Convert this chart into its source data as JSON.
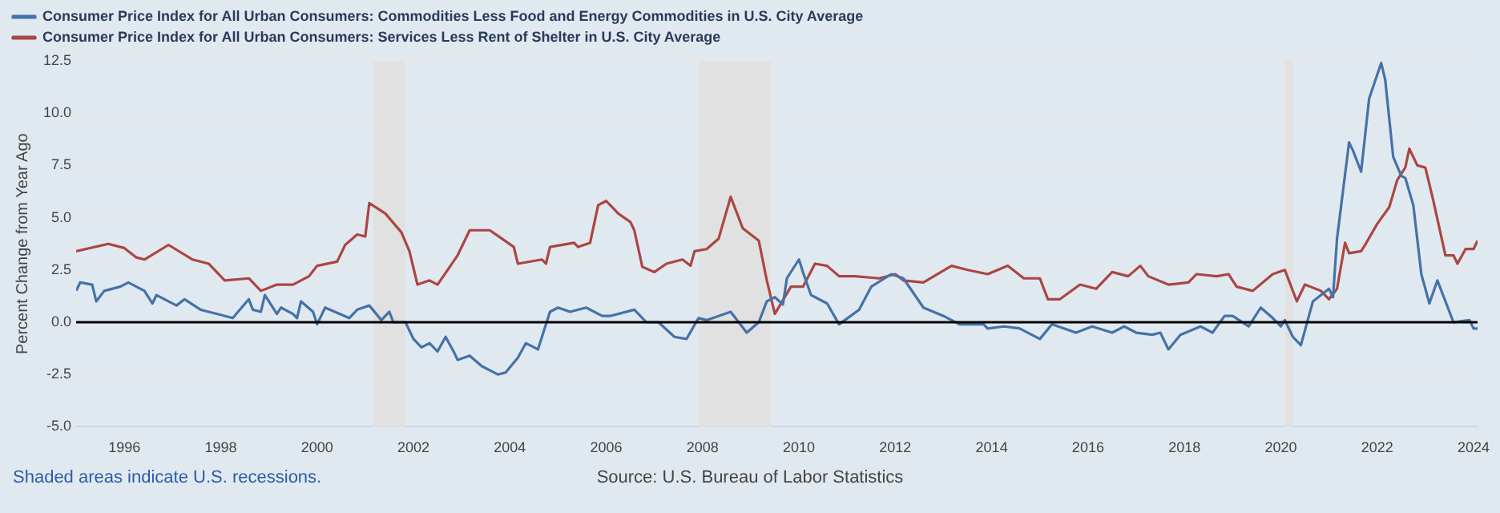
{
  "chart_data": {
    "type": "line",
    "ylabel": "Percent Change from Year Ago",
    "annotations": [
      "Shaded areas indicate U.S. recessions.",
      "Source: U.S. Bureau of Labor Statistics"
    ],
    "xlim": [
      "1995-01",
      "2024-02"
    ],
    "xticks": [
      "1996",
      "1998",
      "2000",
      "2002",
      "2004",
      "2006",
      "2008",
      "2010",
      "2012",
      "2014",
      "2016",
      "2018",
      "2020",
      "2022",
      "2024"
    ],
    "ylim": [
      -5,
      12.5
    ],
    "yticks": [
      {
        "value": -5,
        "label": "-5.0"
      },
      {
        "value": -2.5,
        "label": "-2.5"
      },
      {
        "value": 0,
        "label": "0.0"
      },
      2.5,
      {
        "value": 5,
        "label": "5.0"
      },
      7.5,
      {
        "value": 10,
        "label": "10.0"
      },
      12.5
    ],
    "grid": "y",
    "legend": "top left",
    "marker": "none",
    "line_style": "solid",
    "ref_lines": [
      {
        "axis": "y",
        "value": 0,
        "color": "#000000"
      }
    ],
    "bands": [
      {
        "axis": "x",
        "from": "2001-03",
        "to": "2001-11",
        "color": "#e1e1e1"
      },
      {
        "axis": "x",
        "from": "2007-12",
        "to": "2009-06",
        "color": "#e1e1e1"
      },
      {
        "axis": "x",
        "from": "2020-02",
        "to": "2020-04",
        "color": "#e1e1e1"
      }
    ],
    "series": [
      {
        "name": "Consumer Price Index for All Urban Consumers: Commodities Less Food and Energy Commodities in U.S. City Average",
        "color": "#4572a7",
        "x": [
          "1995-01",
          "1995-02",
          "1995-05",
          "1995-06",
          "1995-08",
          "1995-12",
          "1996-02",
          "1996-06",
          "1996-08",
          "1996-09",
          "1997-02",
          "1997-04",
          "1997-08",
          "1997-12",
          "1998-04",
          "1998-08",
          "1998-09",
          "1998-11",
          "1998-12",
          "1999-03",
          "1999-04",
          "1999-07",
          "1999-08",
          "1999-09",
          "1999-12",
          "2000-01",
          "2000-03",
          "2000-09",
          "2000-11",
          "2001-02",
          "2001-05",
          "2001-07",
          "2001-08",
          "2001-11",
          "2002-01",
          "2002-03",
          "2002-05",
          "2002-07",
          "2002-09",
          "2002-11",
          "2002-12",
          "2003-03",
          "2003-06",
          "2003-10",
          "2003-12",
          "2004-03",
          "2004-05",
          "2004-08",
          "2004-11",
          "2005-01",
          "2005-04",
          "2005-08",
          "2005-12",
          "2006-02",
          "2006-08",
          "2006-11",
          "2007-02",
          "2007-06",
          "2007-09",
          "2007-12",
          "2008-02",
          "2008-08",
          "2008-12",
          "2009-03",
          "2009-05",
          "2009-07",
          "2009-09",
          "2009-10",
          "2010-01",
          "2010-02",
          "2010-04",
          "2010-08",
          "2010-11",
          "2011-04",
          "2011-07",
          "2011-12",
          "2012-03",
          "2012-08",
          "2013-01",
          "2013-05",
          "2013-11",
          "2013-12",
          "2014-04",
          "2014-08",
          "2015-01",
          "2015-04",
          "2015-10",
          "2016-02",
          "2016-07",
          "2016-10",
          "2017-01",
          "2017-05",
          "2017-07",
          "2017-09",
          "2017-12",
          "2018-05",
          "2018-08",
          "2018-11",
          "2019-01",
          "2019-05",
          "2019-08",
          "2019-11",
          "2020-01",
          "2020-02",
          "2020-04",
          "2020-06",
          "2020-07",
          "2020-09",
          "2021-01",
          "2021-02",
          "2021-03",
          "2021-06",
          "2021-07",
          "2021-09",
          "2021-11",
          "2022-02",
          "2022-03",
          "2022-05",
          "2022-07",
          "2022-08",
          "2022-10",
          "2022-12",
          "2023-02",
          "2023-04",
          "2023-08",
          "2023-12",
          "2024-01",
          "2024-02"
        ],
        "values": [
          1.5,
          1.9,
          1.8,
          1.0,
          1.5,
          1.7,
          1.9,
          1.5,
          0.9,
          1.3,
          0.8,
          1.1,
          0.6,
          0.4,
          0.2,
          1.1,
          0.6,
          0.5,
          1.3,
          0.4,
          0.7,
          0.4,
          0.2,
          1.0,
          0.5,
          -0.1,
          0.7,
          0.2,
          0.6,
          0.8,
          0.1,
          0.5,
          0.0,
          0.0,
          -0.8,
          -1.2,
          -1.0,
          -1.4,
          -0.7,
          -1.4,
          -1.8,
          -1.6,
          -2.1,
          -2.5,
          -2.4,
          -1.7,
          -1.0,
          -1.3,
          0.5,
          0.7,
          0.5,
          0.7,
          0.3,
          0.3,
          0.6,
          0.0,
          0.0,
          -0.7,
          -0.8,
          0.2,
          0.1,
          0.5,
          -0.5,
          0.0,
          1.0,
          1.2,
          0.85,
          2.1,
          3.0,
          2.4,
          1.3,
          0.9,
          -0.1,
          0.6,
          1.7,
          2.3,
          2.1,
          0.7,
          0.3,
          -0.1,
          -0.1,
          -0.3,
          -0.2,
          -0.3,
          -0.8,
          -0.1,
          -0.5,
          -0.2,
          -0.5,
          -0.2,
          -0.5,
          -0.6,
          -0.5,
          -1.3,
          -0.6,
          -0.2,
          -0.5,
          0.3,
          0.3,
          -0.2,
          0.7,
          0.2,
          -0.2,
          0.1,
          -0.7,
          -1.1,
          -0.4,
          1.0,
          1.6,
          1.2,
          4.0,
          8.6,
          8.2,
          7.2,
          10.7,
          12.4,
          11.6,
          7.9,
          7.0,
          6.9,
          5.6,
          2.3,
          0.9,
          2.0,
          0.0,
          0.1,
          -0.3,
          -0.3
        ]
      },
      {
        "name": "Consumer Price Index for All Urban Consumers: Services Less Rent of Shelter in U.S. City Average",
        "color": "#aa4643",
        "x": [
          "1995-01",
          "1995-09",
          "1996-01",
          "1996-04",
          "1996-06",
          "1996-12",
          "1997-06",
          "1997-10",
          "1998-02",
          "1998-08",
          "1998-11",
          "1999-03",
          "1999-07",
          "1999-11",
          "2000-01",
          "2000-06",
          "2000-08",
          "2000-11",
          "2001-01",
          "2001-02",
          "2001-06",
          "2001-10",
          "2001-12",
          "2002-02",
          "2002-05",
          "2002-07",
          "2002-12",
          "2003-03",
          "2003-08",
          "2003-11",
          "2004-02",
          "2004-03",
          "2004-09",
          "2004-10",
          "2004-11",
          "2005-05",
          "2005-06",
          "2005-09",
          "2005-11",
          "2006-01",
          "2006-04",
          "2006-07",
          "2006-08",
          "2006-10",
          "2007-01",
          "2007-04",
          "2007-08",
          "2007-10",
          "2007-11",
          "2008-02",
          "2008-05",
          "2008-08",
          "2008-11",
          "2009-03",
          "2009-05",
          "2009-07",
          "2009-11",
          "2010-02",
          "2010-05",
          "2010-08",
          "2010-11",
          "2011-03",
          "2011-09",
          "2012-01",
          "2012-03",
          "2012-08",
          "2013-03",
          "2013-07",
          "2013-12",
          "2014-05",
          "2014-09",
          "2015-01",
          "2015-03",
          "2015-06",
          "2015-11",
          "2016-03",
          "2016-07",
          "2016-11",
          "2017-02",
          "2017-04",
          "2017-09",
          "2018-02",
          "2018-04",
          "2018-09",
          "2018-12",
          "2019-02",
          "2019-06",
          "2019-11",
          "2020-02",
          "2020-05",
          "2020-07",
          "2020-11",
          "2021-01",
          "2021-03",
          "2021-05",
          "2021-06",
          "2021-09",
          "2021-10",
          "2022-01",
          "2022-04",
          "2022-06",
          "2022-08",
          "2022-09",
          "2022-11",
          "2023-01",
          "2023-03",
          "2023-06",
          "2023-08",
          "2023-09",
          "2023-11",
          "2024-01",
          "2024-02"
        ],
        "values": [
          3.4,
          3.75,
          3.55,
          3.1,
          3.0,
          3.7,
          3.0,
          2.8,
          2.0,
          2.1,
          1.5,
          1.8,
          1.8,
          2.2,
          2.7,
          2.9,
          3.7,
          4.2,
          4.1,
          5.7,
          5.2,
          4.3,
          3.4,
          1.8,
          2.0,
          1.8,
          3.2,
          4.4,
          4.4,
          4.0,
          3.6,
          2.8,
          3.0,
          2.8,
          3.6,
          3.8,
          3.6,
          3.8,
          5.6,
          5.8,
          5.2,
          4.8,
          4.4,
          2.65,
          2.4,
          2.8,
          3.0,
          2.7,
          3.4,
          3.5,
          4.0,
          6.0,
          4.5,
          3.9,
          2.0,
          0.4,
          1.7,
          1.7,
          2.8,
          2.7,
          2.2,
          2.2,
          2.1,
          2.3,
          2.0,
          1.9,
          2.7,
          2.5,
          2.3,
          2.7,
          2.1,
          2.1,
          1.1,
          1.1,
          1.8,
          1.6,
          2.4,
          2.2,
          2.7,
          2.2,
          1.8,
          1.9,
          2.3,
          2.2,
          2.3,
          1.7,
          1.5,
          2.3,
          2.5,
          1.0,
          1.8,
          1.5,
          1.1,
          1.6,
          3.8,
          3.3,
          3.4,
          3.7,
          4.7,
          5.5,
          6.8,
          7.4,
          8.3,
          7.5,
          7.4,
          5.8,
          3.2,
          3.2,
          2.8,
          3.5,
          3.5,
          3.9
        ]
      }
    ]
  }
}
